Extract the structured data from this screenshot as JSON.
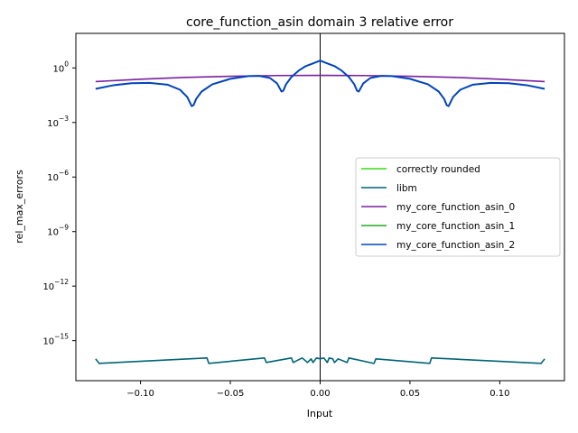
{
  "chart_data": {
    "type": "line",
    "title": "core_function_asin domain 3 relative error",
    "xlabel": "Input",
    "ylabel": "rel_max_errors",
    "xlim": [
      -0.136,
      0.136
    ],
    "ylim_log10": [
      -17.2,
      1.9
    ],
    "yscale": "log",
    "x_ticks": [
      -0.1,
      -0.05,
      0.0,
      0.05,
      0.1
    ],
    "x_tick_labels": [
      "−0.10",
      "−0.05",
      "0.00",
      "0.05",
      "0.10"
    ],
    "y_tick_exponents": [
      0,
      -3,
      -6,
      -9,
      -12,
      -15
    ],
    "y_tick_labels": [
      "10",
      "10",
      "10",
      "10",
      "10",
      "10"
    ],
    "y_tick_sups": [
      "0",
      "−3",
      "−6",
      "−9",
      "−12",
      "−15"
    ],
    "vline_x": 0,
    "legend_position": "center-right",
    "series": [
      {
        "name": "correctly rounded",
        "color": "#33dd11",
        "x": [],
        "log10_y": []
      },
      {
        "name": "libm",
        "color": "#006477",
        "x": [
          -0.125,
          -0.123,
          -0.063,
          -0.062,
          -0.031,
          -0.03,
          -0.016,
          -0.015,
          -0.01,
          -0.007,
          -0.005,
          -0.004,
          -0.002,
          0.0,
          0.002,
          0.004,
          0.005,
          0.007,
          0.008,
          0.01,
          0.015,
          0.016,
          0.03,
          0.031,
          0.061,
          0.062,
          0.123,
          0.125
        ],
        "log10_y": [
          -16.0,
          -16.25,
          -15.95,
          -16.25,
          -15.95,
          -16.2,
          -15.95,
          -16.2,
          -15.95,
          -16.2,
          -16.0,
          -16.2,
          -15.95,
          -16.0,
          -15.95,
          -16.2,
          -15.95,
          -16.0,
          -16.2,
          -16.0,
          -16.2,
          -15.95,
          -16.25,
          -16.0,
          -16.25,
          -15.95,
          -16.25,
          -16.0
        ]
      },
      {
        "name": "my_core_function_asin_0",
        "color": "#7a1fa0",
        "x": [
          -0.125,
          -0.1,
          -0.075,
          -0.05,
          -0.025,
          0.0,
          0.025,
          0.05,
          0.075,
          0.1,
          0.125
        ],
        "log10_y": [
          -0.75,
          -0.62,
          -0.52,
          -0.46,
          -0.42,
          -0.41,
          -0.42,
          -0.46,
          -0.52,
          -0.62,
          -0.75
        ]
      },
      {
        "name": "my_core_function_asin_1",
        "color": "#22aa22",
        "x": [],
        "log10_y": []
      },
      {
        "name": "my_core_function_asin_2",
        "color": "#0044bb",
        "x": [
          -0.125,
          -0.115,
          -0.105,
          -0.095,
          -0.085,
          -0.078,
          -0.074,
          -0.0715,
          -0.0705,
          -0.069,
          -0.066,
          -0.06,
          -0.05,
          -0.04,
          -0.034,
          -0.028,
          -0.024,
          -0.0215,
          -0.0205,
          -0.019,
          -0.016,
          -0.012,
          -0.008,
          -0.004,
          0.0,
          0.004,
          0.008,
          0.012,
          0.016,
          0.019,
          0.0205,
          0.0215,
          0.024,
          0.028,
          0.034,
          0.04,
          0.05,
          0.06,
          0.066,
          0.069,
          0.0705,
          0.0715,
          0.074,
          0.078,
          0.085,
          0.095,
          0.105,
          0.115,
          0.125
        ],
        "log10_y": [
          -1.15,
          -0.95,
          -0.84,
          -0.82,
          -0.92,
          -1.2,
          -1.6,
          -2.1,
          -2.05,
          -1.7,
          -1.3,
          -0.9,
          -0.6,
          -0.45,
          -0.44,
          -0.55,
          -0.85,
          -1.3,
          -1.25,
          -0.9,
          -0.5,
          -0.15,
          0.1,
          0.25,
          0.4,
          0.25,
          0.1,
          -0.15,
          -0.5,
          -0.9,
          -1.25,
          -1.3,
          -0.85,
          -0.55,
          -0.44,
          -0.45,
          -0.6,
          -0.9,
          -1.3,
          -1.7,
          -2.05,
          -2.1,
          -1.6,
          -1.2,
          -0.92,
          -0.82,
          -0.84,
          -0.95,
          -1.15
        ]
      }
    ]
  }
}
